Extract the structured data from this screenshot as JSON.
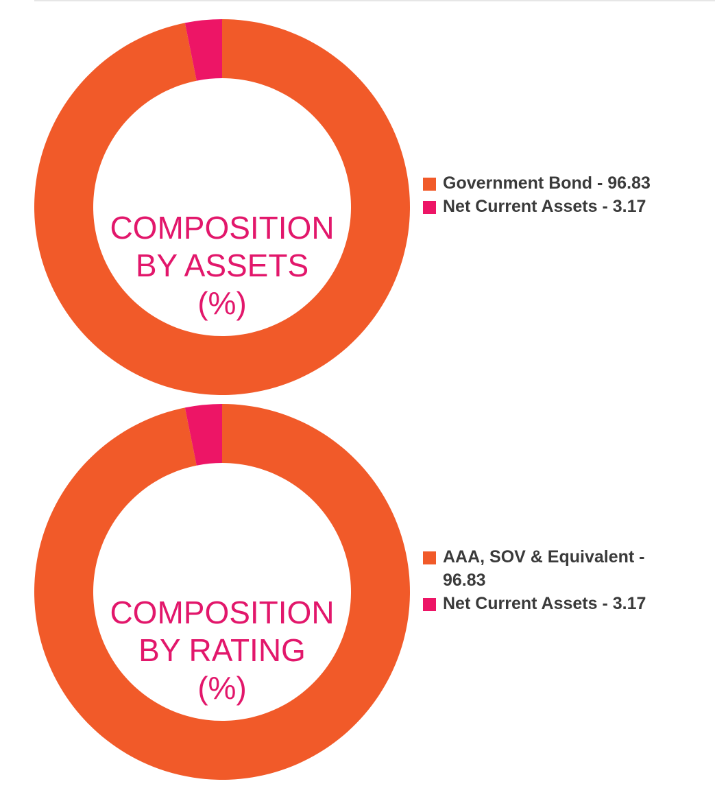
{
  "chart_data": [
    {
      "id": "assets",
      "type": "pie",
      "title_lines": [
        "COMPOSITION",
        "BY ASSETS",
        "(%)"
      ],
      "slices": [
        {
          "label": "Government Bond",
          "value": 96.83,
          "legend": "Government Bond - 96.83",
          "color": "#f15a29"
        },
        {
          "label": "Net Current Assets",
          "value": 3.17,
          "legend": "Net Current Assets - 3.17",
          "color": "#ed1566"
        }
      ]
    },
    {
      "id": "rating",
      "type": "pie",
      "title_lines": [
        "COMPOSITION",
        "BY RATING",
        "(%)"
      ],
      "slices": [
        {
          "label": "AAA, SOV & Equivalent",
          "value": 96.83,
          "legend": "AAA, SOV & Equivalent - 96.83",
          "color": "#f15a29"
        },
        {
          "label": "Net Current Assets",
          "value": 3.17,
          "legend": "Net Current Assets - 3.17",
          "color": "#ed1566"
        }
      ]
    }
  ],
  "colors": {
    "title": "#e2176b",
    "legend_text": "#3a3a3a"
  }
}
